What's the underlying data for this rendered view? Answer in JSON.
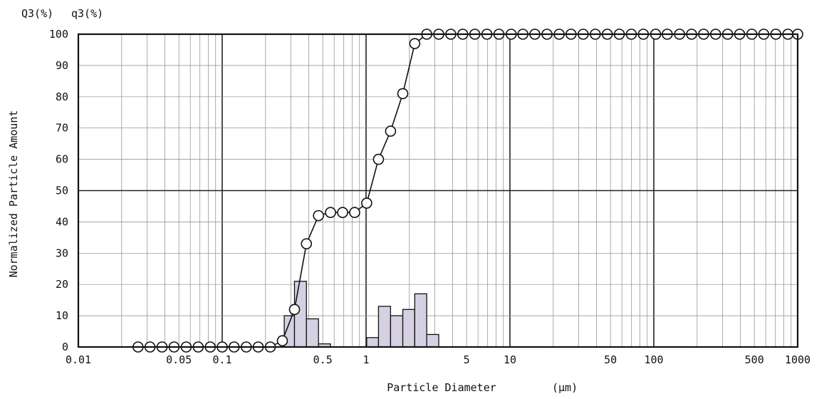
{
  "chart_data": {
    "type": "bar+line",
    "xscale": "log",
    "xlim": [
      0.01,
      1000
    ],
    "ylim": [
      0,
      100
    ],
    "title": "",
    "xlabel": "Particle Diameter",
    "xunit": "(μm)",
    "ylabel": "Normalized Particle Amount",
    "y_header_left": "Q3(%)",
    "y_header_right": "q3(%)",
    "x_tick_labels": [
      {
        "value": 0.01,
        "label": "0.01"
      },
      {
        "value": 0.05,
        "label": "0.05"
      },
      {
        "value": 0.1,
        "label": "0.1"
      },
      {
        "value": 0.5,
        "label": "0.5"
      },
      {
        "value": 1,
        "label": "1"
      },
      {
        "value": 5,
        "label": "5"
      },
      {
        "value": 10,
        "label": "10"
      },
      {
        "value": 50,
        "label": "50"
      },
      {
        "value": 100,
        "label": "100"
      },
      {
        "value": 500,
        "label": "500"
      },
      {
        "value": 1000,
        "label": "1000"
      }
    ],
    "y_ticks": [
      0,
      10,
      20,
      30,
      40,
      50,
      60,
      70,
      80,
      90,
      100
    ],
    "grid": true,
    "colors": {
      "bar_fill": "#d5d1e2",
      "bar_stroke": "#111111",
      "line": "#111111",
      "marker_fill": "#ffffff"
    },
    "series": [
      {
        "kind": "cumulative-line",
        "x": [
          0.026,
          0.0315,
          0.0382,
          0.0463,
          0.0562,
          0.0681,
          0.0826,
          0.1,
          0.121,
          0.147,
          0.178,
          0.216,
          0.262,
          0.318,
          0.385,
          0.467,
          0.566,
          0.687,
          0.833,
          1.01,
          1.22,
          1.48,
          1.8,
          2.18,
          2.64,
          3.2,
          3.88,
          4.7,
          5.7,
          6.92,
          8.39,
          10.2,
          12.3,
          14.9,
          18.1,
          22,
          26.6,
          32.3,
          39.2,
          47.5,
          57.6,
          69.8,
          84.6,
          103,
          124,
          151,
          183,
          222,
          269,
          326,
          395,
          480,
          581,
          705,
          855,
          1000
        ],
        "values": [
          0,
          0,
          0,
          0,
          0,
          0,
          0,
          0,
          0,
          0,
          0,
          0,
          2,
          12,
          33,
          42,
          43,
          43,
          43,
          46,
          60,
          69,
          81,
          97,
          100,
          100,
          100,
          100,
          100,
          100,
          100,
          100,
          100,
          100,
          100,
          100,
          100,
          100,
          100,
          100,
          100,
          100,
          100,
          100,
          100,
          100,
          100,
          100,
          100,
          100,
          100,
          100,
          100,
          100,
          100,
          100
        ]
      },
      {
        "kind": "frequency-bars",
        "bins": [
          {
            "from": 0.27,
            "to": 0.318,
            "value": 10
          },
          {
            "from": 0.318,
            "to": 0.385,
            "value": 21
          },
          {
            "from": 0.385,
            "to": 0.467,
            "value": 9
          },
          {
            "from": 0.467,
            "to": 0.566,
            "value": 1
          },
          {
            "from": 1.01,
            "to": 1.22,
            "value": 3
          },
          {
            "from": 1.22,
            "to": 1.48,
            "value": 13
          },
          {
            "from": 1.48,
            "to": 1.8,
            "value": 10
          },
          {
            "from": 1.8,
            "to": 2.18,
            "value": 12
          },
          {
            "from": 2.18,
            "to": 2.64,
            "value": 17
          },
          {
            "from": 2.64,
            "to": 3.2,
            "value": 4
          }
        ]
      }
    ]
  }
}
